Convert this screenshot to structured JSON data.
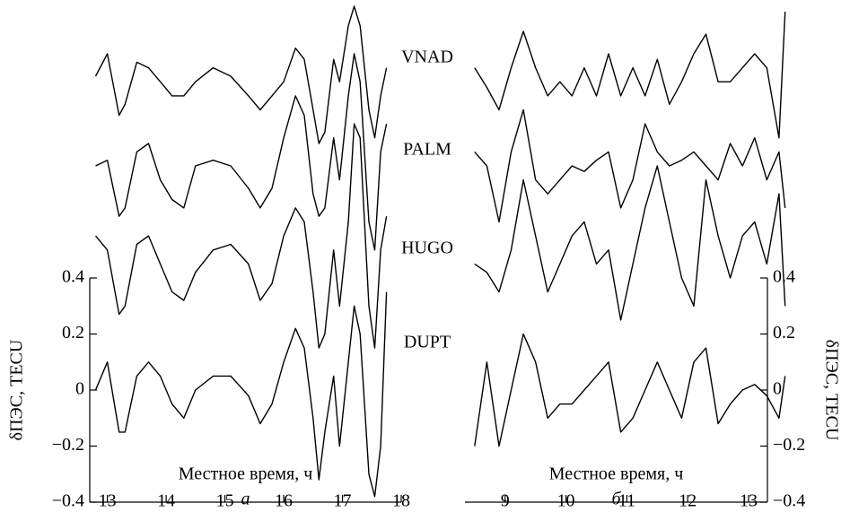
{
  "chart_data": [
    {
      "type": "line",
      "panel_label": "а",
      "xlabel": "Местное время, ч",
      "ylabel": "δПЭС, TECU",
      "yaxis_side": "left",
      "xlim": [
        12.7,
        18.0
      ],
      "xticks": [
        13,
        14,
        15,
        16,
        17,
        18
      ],
      "ylim": [
        -0.4,
        1.376
      ],
      "yticks": [
        0.4,
        0.2,
        0,
        {
          "value": -0.2,
          "label": "−0.2"
        },
        {
          "value": -0.4,
          "label": "−0.4"
        }
      ],
      "x": [
        12.8,
        13.0,
        13.2,
        13.3,
        13.5,
        13.7,
        13.9,
        14.1,
        14.3,
        14.5,
        14.8,
        15.1,
        15.4,
        15.6,
        15.8,
        16.0,
        16.2,
        16.35,
        16.5,
        16.6,
        16.7,
        16.85,
        16.95,
        17.1,
        17.2,
        17.3,
        17.45,
        17.55,
        17.65,
        17.75
      ],
      "series": [
        {
          "name": "VNAD",
          "color": "#000000",
          "values": [
            1.12,
            1.2,
            0.98,
            1.02,
            1.17,
            1.15,
            1.1,
            1.05,
            1.05,
            1.1,
            1.15,
            1.12,
            1.05,
            1.0,
            1.05,
            1.1,
            1.22,
            1.18,
            1.0,
            0.88,
            0.92,
            1.18,
            1.1,
            1.3,
            1.37,
            1.3,
            1.0,
            0.9,
            1.05,
            1.15
          ]
        },
        {
          "name": "PALM",
          "color": "#000000",
          "values": [
            0.8,
            0.82,
            0.62,
            0.65,
            0.85,
            0.88,
            0.75,
            0.68,
            0.65,
            0.8,
            0.82,
            0.8,
            0.72,
            0.65,
            0.72,
            0.9,
            1.05,
            0.98,
            0.7,
            0.62,
            0.65,
            0.9,
            0.75,
            1.05,
            1.2,
            1.1,
            0.6,
            0.5,
            0.85,
            0.95
          ]
        },
        {
          "name": "HUGO",
          "color": "#000000",
          "values": [
            0.55,
            0.5,
            0.27,
            0.3,
            0.52,
            0.55,
            0.45,
            0.35,
            0.32,
            0.42,
            0.5,
            0.52,
            0.45,
            0.32,
            0.38,
            0.55,
            0.65,
            0.6,
            0.35,
            0.15,
            0.2,
            0.5,
            0.3,
            0.6,
            0.95,
            0.9,
            0.3,
            0.15,
            0.5,
            0.62
          ]
        },
        {
          "name": "DUPT",
          "color": "#000000",
          "values": [
            0.0,
            0.1,
            -0.15,
            -0.15,
            0.05,
            0.1,
            0.05,
            -0.05,
            -0.1,
            0.0,
            0.05,
            0.05,
            -0.02,
            -0.12,
            -0.05,
            0.1,
            0.22,
            0.15,
            -0.1,
            -0.32,
            -0.15,
            0.05,
            -0.2,
            0.1,
            0.3,
            0.2,
            -0.3,
            -0.38,
            -0.2,
            0.35
          ]
        }
      ]
    },
    {
      "type": "line",
      "panel_label": "б",
      "xlabel": "Местное время, ч",
      "ylabel": "δПЭС, TECU",
      "yaxis_side": "right",
      "xlim": [
        8.34,
        13.31
      ],
      "xticks": [
        9,
        10,
        11,
        12,
        13
      ],
      "ylim": [
        -0.4,
        1.376
      ],
      "yticks": [
        0.4,
        0.2,
        0,
        {
          "value": -0.2,
          "label": "−0.2"
        },
        {
          "value": -0.4,
          "label": "−0.4"
        }
      ],
      "x": [
        8.5,
        8.7,
        8.9,
        9.1,
        9.3,
        9.5,
        9.7,
        9.9,
        10.1,
        10.3,
        10.5,
        10.7,
        10.9,
        11.1,
        11.3,
        11.5,
        11.7,
        11.9,
        12.1,
        12.3,
        12.5,
        12.7,
        12.9,
        13.1,
        13.3,
        13.5,
        13.6
      ],
      "series": [
        {
          "color": "#000000",
          "values": [
            1.15,
            1.08,
            1.0,
            1.15,
            1.28,
            1.15,
            1.05,
            1.1,
            1.05,
            1.15,
            1.05,
            1.2,
            1.05,
            1.15,
            1.05,
            1.18,
            1.02,
            1.1,
            1.2,
            1.27,
            1.1,
            1.1,
            1.15,
            1.2,
            1.15,
            0.9,
            1.35
          ]
        },
        {
          "color": "#000000",
          "values": [
            0.85,
            0.8,
            0.6,
            0.85,
            1.0,
            0.75,
            0.7,
            0.75,
            0.8,
            0.78,
            0.82,
            0.85,
            0.65,
            0.75,
            0.95,
            0.85,
            0.8,
            0.82,
            0.85,
            0.8,
            0.75,
            0.88,
            0.8,
            0.9,
            0.75,
            0.85,
            0.65
          ]
        },
        {
          "color": "#000000",
          "values": [
            0.45,
            0.42,
            0.35,
            0.5,
            0.75,
            0.55,
            0.35,
            0.45,
            0.55,
            0.6,
            0.45,
            0.5,
            0.25,
            0.45,
            0.65,
            0.8,
            0.6,
            0.4,
            0.3,
            0.75,
            0.55,
            0.4,
            0.55,
            0.6,
            0.45,
            0.7,
            0.3
          ]
        },
        {
          "color": "#000000",
          "values": [
            -0.2,
            0.1,
            -0.2,
            0.0,
            0.2,
            0.1,
            -0.1,
            -0.05,
            -0.05,
            0.0,
            0.05,
            0.1,
            -0.15,
            -0.1,
            0.0,
            0.1,
            0.0,
            -0.1,
            0.1,
            0.15,
            -0.12,
            -0.05,
            0.0,
            0.02,
            -0.02,
            -0.1,
            0.05
          ]
        }
      ]
    }
  ]
}
